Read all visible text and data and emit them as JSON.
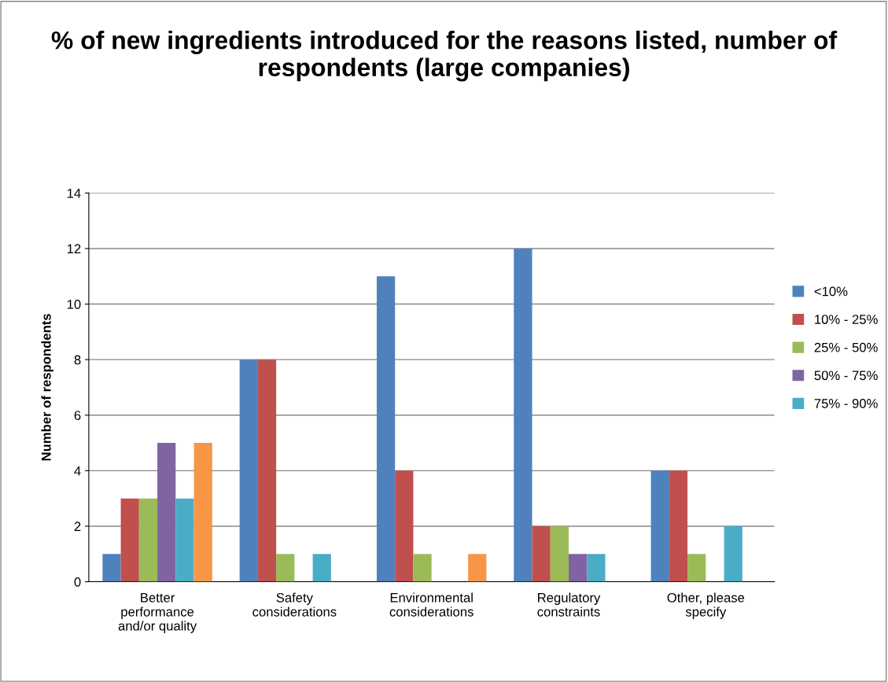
{
  "chart_data": {
    "type": "bar",
    "title": "% of new ingredients introduced for the reasons listed, number of respondents (large companies)",
    "ylabel": "Number of respondents",
    "categories": [
      "Better performance and/or quality",
      "Safety considerations",
      "Environmental considerations",
      "Regulatory constraints",
      "Other, please specify"
    ],
    "series": [
      {
        "name": "<10%",
        "color": "#4f81bd",
        "values": [
          1,
          8,
          11,
          12,
          4
        ]
      },
      {
        "name": "10% - 25%",
        "color": "#c0504d",
        "values": [
          3,
          8,
          4,
          2,
          4
        ]
      },
      {
        "name": "25% - 50%",
        "color": "#9bbb59",
        "values": [
          3,
          1,
          1,
          2,
          1
        ]
      },
      {
        "name": "50% - 75%",
        "color": "#8064a2",
        "values": [
          5,
          0,
          0,
          1,
          0
        ]
      },
      {
        "name": "75% - 90%",
        "color": "#4bacc6",
        "values": [
          3,
          1,
          0,
          1,
          2
        ]
      },
      {
        "color": "#f79646",
        "values": [
          5,
          0,
          1,
          0,
          0
        ]
      }
    ],
    "ylim": [
      0,
      14
    ],
    "yticks": [
      0,
      2,
      4,
      6,
      8,
      10,
      12,
      14
    ],
    "grid": "y",
    "legend": "right"
  }
}
